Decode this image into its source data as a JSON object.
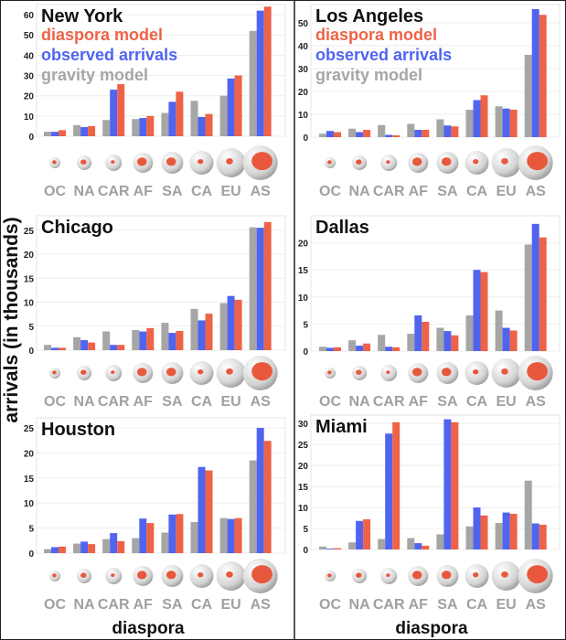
{
  "ylabel": "arrivals (in thousands)",
  "xlabel": "diaspora",
  "colors": {
    "gravity": "#a6a6a6",
    "observed": "#5064f0",
    "diaspora": "#ee6347"
  },
  "legend": [
    "diaspora model",
    "observed arrivals",
    "gravity model"
  ],
  "chart_data": [
    {
      "type": "bar",
      "title": "New York",
      "categories": [
        "OC",
        "NA",
        "CAR",
        "AF",
        "SA",
        "CA",
        "EU",
        "AS"
      ],
      "ylim": [
        0,
        65
      ],
      "yticks": [
        0,
        10,
        20,
        30,
        40,
        50,
        60
      ],
      "xlabel": "",
      "ylabel": "arrivals (in thousands)",
      "series": [
        {
          "name": "gravity model",
          "values": [
            2.2,
            5.5,
            8,
            8.5,
            11.5,
            17.5,
            20,
            52
          ]
        },
        {
          "name": "observed arrivals",
          "values": [
            2.2,
            4.5,
            23,
            9,
            17,
            9.5,
            28.5,
            62
          ]
        },
        {
          "name": "diaspora model",
          "values": [
            3,
            5,
            25.7,
            10,
            22,
            11,
            30,
            64
          ]
        }
      ]
    },
    {
      "type": "bar",
      "title": "Los Angeles",
      "categories": [
        "OC",
        "NA",
        "CAR",
        "AF",
        "SA",
        "CA",
        "EU",
        "AS"
      ],
      "ylim": [
        0,
        58
      ],
      "yticks": [
        0,
        10,
        20,
        30,
        40,
        50
      ],
      "series": [
        {
          "name": "gravity model",
          "values": [
            1.5,
            3.7,
            5.3,
            5.8,
            7.8,
            12,
            13.5,
            36
          ]
        },
        {
          "name": "observed arrivals",
          "values": [
            2.7,
            2.2,
            1,
            3.2,
            5.1,
            16.2,
            12.5,
            56
          ]
        },
        {
          "name": "diaspora model",
          "values": [
            2.2,
            3.2,
            0.8,
            3.2,
            4.7,
            18.3,
            12,
            53.5
          ]
        }
      ]
    },
    {
      "type": "bar",
      "title": "Chicago",
      "categories": [
        "OC",
        "NA",
        "CAR",
        "AF",
        "SA",
        "CA",
        "EU",
        "AS"
      ],
      "ylim": [
        0,
        28
      ],
      "yticks": [
        0,
        5,
        10,
        15,
        20,
        25
      ],
      "series": [
        {
          "name": "gravity model",
          "values": [
            1.1,
            2.7,
            3.9,
            4.2,
            5.7,
            8.6,
            9.8,
            25.6
          ]
        },
        {
          "name": "observed arrivals",
          "values": [
            0.5,
            2.1,
            1.1,
            3.9,
            3.6,
            6.2,
            11.3,
            25.5
          ]
        },
        {
          "name": "diaspora model",
          "values": [
            0.5,
            1.6,
            1.1,
            4.6,
            4,
            7.6,
            10.5,
            26.7
          ]
        }
      ]
    },
    {
      "type": "bar",
      "title": "Dallas",
      "categories": [
        "OC",
        "NA",
        "CAR",
        "AF",
        "SA",
        "CA",
        "EU",
        "AS"
      ],
      "ylim": [
        0,
        25
      ],
      "yticks": [
        0,
        5,
        10,
        15,
        20
      ],
      "series": [
        {
          "name": "gravity model",
          "values": [
            0.8,
            2,
            3,
            3.2,
            4.3,
            6.6,
            7.5,
            19.7
          ]
        },
        {
          "name": "observed arrivals",
          "values": [
            0.6,
            1,
            0.8,
            6.6,
            3.7,
            15,
            4.3,
            23.5
          ]
        },
        {
          "name": "diaspora model",
          "values": [
            0.7,
            1.4,
            0.7,
            5.4,
            2.9,
            14.6,
            3.8,
            21
          ]
        }
      ]
    },
    {
      "type": "bar",
      "title": "Houston",
      "categories": [
        "OC",
        "NA",
        "CAR",
        "AF",
        "SA",
        "CA",
        "EU",
        "AS"
      ],
      "ylim": [
        0,
        27
      ],
      "yticks": [
        0,
        5,
        10,
        15,
        20,
        25
      ],
      "series": [
        {
          "name": "gravity model",
          "values": [
            0.8,
            1.9,
            2.8,
            3,
            4.1,
            6.2,
            7,
            18.5
          ]
        },
        {
          "name": "observed arrivals",
          "values": [
            1.2,
            2.3,
            4,
            6.9,
            7.7,
            17.2,
            6.8,
            25
          ]
        },
        {
          "name": "diaspora model",
          "values": [
            1.3,
            1.8,
            2.4,
            6,
            7.8,
            16.5,
            7,
            22.4
          ]
        }
      ]
    },
    {
      "type": "bar",
      "title": "Miami",
      "categories": [
        "OC",
        "NA",
        "CAR",
        "AF",
        "SA",
        "CA",
        "EU",
        "AS"
      ],
      "ylim": [
        0,
        32
      ],
      "yticks": [
        0,
        5,
        10,
        15,
        20,
        25,
        30
      ],
      "series": [
        {
          "name": "gravity model",
          "values": [
            0.7,
            1.7,
            2.5,
            2.7,
            3.6,
            5.5,
            6.3,
            16.4
          ]
        },
        {
          "name": "observed arrivals",
          "values": [
            0.2,
            6.8,
            27.6,
            1.5,
            31,
            10,
            8.8,
            6.2
          ]
        },
        {
          "name": "diaspora model",
          "values": [
            0.3,
            7.2,
            30.3,
            0.9,
            30.3,
            8.1,
            8.5,
            5.9
          ]
        }
      ]
    }
  ]
}
